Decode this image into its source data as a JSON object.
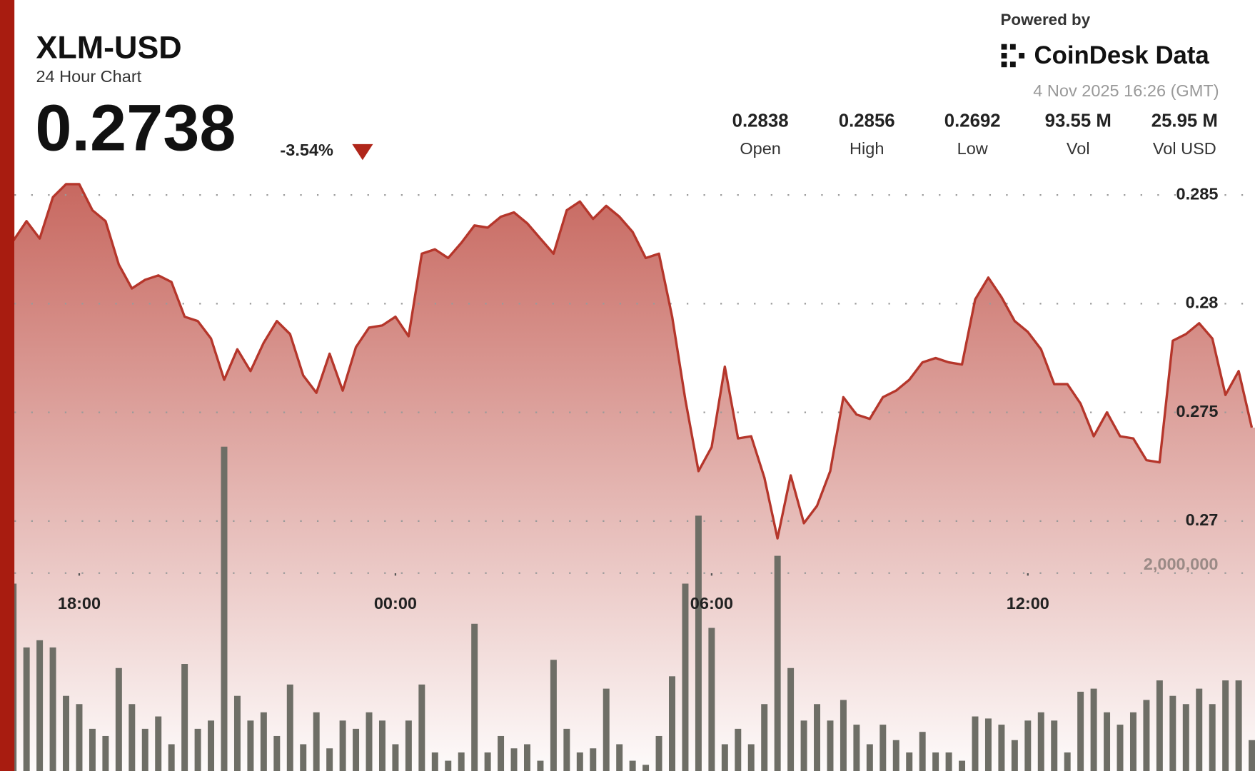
{
  "header": {
    "symbol": "XLM-USD",
    "subtitle": "24 Hour Chart",
    "price": "0.2738",
    "change": "-3.54%",
    "powered_by": "Powered by",
    "brand": "CoinDesk Data",
    "timestamp": "4 Nov 2025 16:26 (GMT)",
    "stats": [
      {
        "value": "0.2838",
        "label": "Open"
      },
      {
        "value": "0.2856",
        "label": "High"
      },
      {
        "value": "0.2692",
        "label": "Low"
      },
      {
        "value": "93.55 M",
        "label": "Vol"
      },
      {
        "value": "25.95 M",
        "label": "Vol USD"
      }
    ]
  },
  "chart_data": {
    "type": "line",
    "x": [
      16.75,
      17,
      17.25,
      17.5,
      17.75,
      18,
      18.25,
      18.5,
      18.75,
      19,
      19.25,
      19.5,
      19.75,
      20,
      20.25,
      20.5,
      20.75,
      21,
      21.25,
      21.5,
      21.75,
      22,
      22.25,
      22.5,
      22.75,
      23,
      23.25,
      23.5,
      23.75,
      24,
      24.25,
      24.5,
      24.75,
      25,
      25.25,
      25.5,
      25.75,
      26,
      26.25,
      26.5,
      26.75,
      27,
      27.25,
      27.5,
      27.75,
      28,
      28.25,
      28.5,
      28.75,
      29,
      29.25,
      29.5,
      29.75,
      30,
      30.25,
      30.5,
      30.75,
      31,
      31.25,
      31.5,
      31.75,
      32,
      32.25,
      32.5,
      32.75,
      33,
      33.25,
      33.5,
      33.75,
      34,
      34.25,
      34.5,
      34.75,
      35,
      35.25,
      35.5,
      35.75,
      36,
      36.25,
      36.5,
      36.75,
      37,
      37.25,
      37.5,
      37.75,
      38,
      38.25,
      38.5,
      38.75,
      39,
      39.25,
      39.5,
      39.75,
      40,
      40.25
    ],
    "series": [
      {
        "color": "#b5362b",
        "values": [
          0.2829,
          0.2838,
          0.283,
          0.2849,
          0.2855,
          0.2855,
          0.2843,
          0.2838,
          0.2818,
          0.2807,
          0.2811,
          0.2813,
          0.281,
          0.2794,
          0.2792,
          0.2784,
          0.2765,
          0.2779,
          0.2769,
          0.2782,
          0.2792,
          0.2786,
          0.2767,
          0.2759,
          0.2777,
          0.276,
          0.278,
          0.2789,
          0.279,
          0.2794,
          0.2785,
          0.2823,
          0.2825,
          0.2821,
          0.2828,
          0.2836,
          0.2835,
          0.284,
          0.2842,
          0.2837,
          0.283,
          0.2823,
          0.2843,
          0.2847,
          0.2839,
          0.2845,
          0.284,
          0.2833,
          0.2821,
          0.2823,
          0.2794,
          0.2756,
          0.2723,
          0.2734,
          0.2771,
          0.2738,
          0.2739,
          0.272,
          0.2692,
          0.2721,
          0.2699,
          0.2707,
          0.2723,
          0.2757,
          0.2749,
          0.2747,
          0.2757,
          0.276,
          0.2765,
          0.2773,
          0.2775,
          0.2773,
          0.2772,
          0.2802,
          0.2812,
          0.2803,
          0.2792,
          0.2787,
          0.2779,
          0.2763,
          0.2763,
          0.2754,
          0.2739,
          0.275,
          0.2739,
          0.2738,
          0.2728,
          0.2727,
          0.2783,
          0.2786,
          0.2791,
          0.2784,
          0.2758,
          0.2769,
          0.2743
        ]
      },
      {
        "color": "#6e6e66",
        "axis": "y2",
        "type": "bar",
        "values": [
          1820000,
          1200000,
          1270000,
          1200000,
          730000,
          650000,
          410000,
          340000,
          1000000,
          650000,
          410000,
          530000,
          260000,
          1040000,
          410000,
          490000,
          3150000,
          730000,
          490000,
          570000,
          340000,
          840000,
          260000,
          570000,
          220000,
          490000,
          410000,
          570000,
          490000,
          260000,
          490000,
          840000,
          180000,
          100000,
          180000,
          1430000,
          180000,
          340000,
          220000,
          260000,
          100000,
          1080000,
          410000,
          180000,
          220000,
          800000,
          260000,
          100000,
          60000,
          340000,
          920000,
          1820000,
          2480000,
          1390000,
          260000,
          410000,
          260000,
          650000,
          2090000,
          1000000,
          490000,
          650000,
          490000,
          690000,
          450000,
          260000,
          450000,
          300000,
          180000,
          380000,
          180000,
          180000,
          100000,
          530000,
          510000,
          450000,
          300000,
          490000,
          570000,
          490000,
          180000,
          770000,
          800000,
          570000,
          450000,
          570000,
          690000,
          880000,
          730000,
          650000,
          800000,
          650000,
          880000,
          880000,
          300000
        ]
      }
    ],
    "xlim": [
      16.77,
      40.31
    ],
    "xticks": [
      {
        "value": 18,
        "label": "18:00"
      },
      {
        "value": 24,
        "label": "00:00"
      },
      {
        "value": 30,
        "label": "06:00"
      },
      {
        "value": 36,
        "label": "12:00"
      }
    ],
    "ylim": [
      0.2585,
      0.2855
    ],
    "yticks": [
      0.27,
      0.275,
      0.28,
      0.285
    ],
    "y2lim": [
      0,
      5700000
    ],
    "y2ticks": [
      {
        "value": 2000000,
        "label": "2,000,000"
      }
    ],
    "grid": true
  }
}
